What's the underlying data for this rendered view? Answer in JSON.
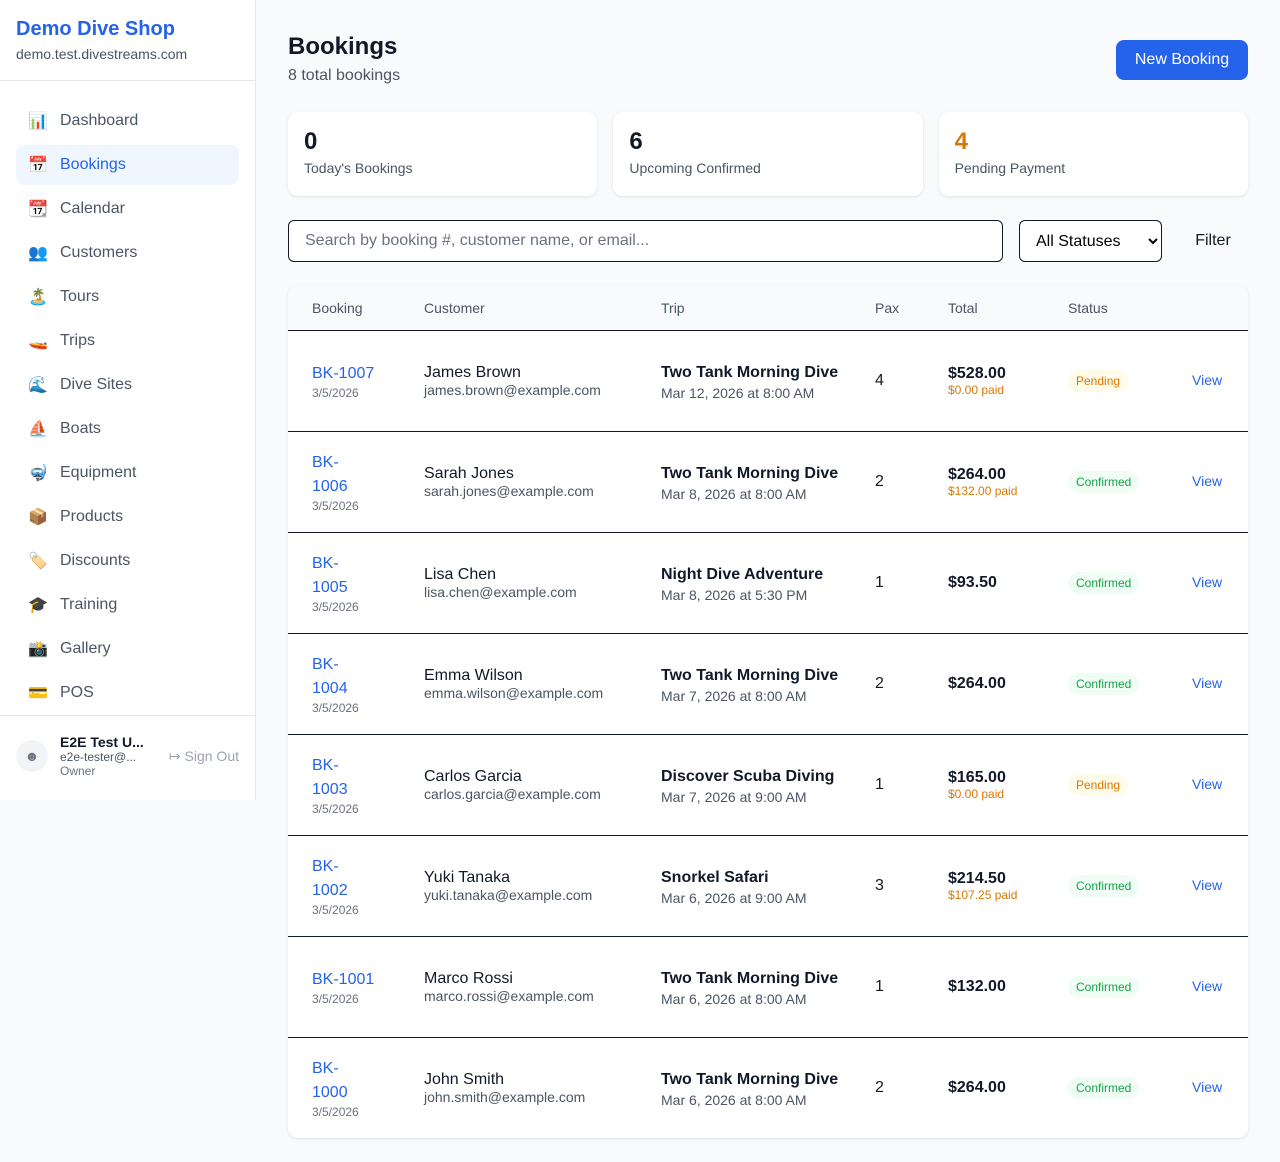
{
  "brand": {
    "name": "Demo Dive Shop",
    "domain": "demo.test.divestreams.com"
  },
  "nav": [
    {
      "icon": "📊",
      "label": "Dashboard"
    },
    {
      "icon": "📅",
      "label": "Bookings",
      "active": true
    },
    {
      "icon": "📆",
      "label": "Calendar"
    },
    {
      "icon": "👥",
      "label": "Customers"
    },
    {
      "icon": "🏝️",
      "label": "Tours"
    },
    {
      "icon": "🚤",
      "label": "Trips"
    },
    {
      "icon": "🌊",
      "label": "Dive Sites"
    },
    {
      "icon": "⛵",
      "label": "Boats"
    },
    {
      "icon": "🤿",
      "label": "Equipment"
    },
    {
      "icon": "📦",
      "label": "Products"
    },
    {
      "icon": "🏷️",
      "label": "Discounts"
    },
    {
      "icon": "🎓",
      "label": "Training"
    },
    {
      "icon": "📸",
      "label": "Gallery"
    },
    {
      "icon": "💳",
      "label": "POS"
    }
  ],
  "user": {
    "name": "E2E Test U...",
    "email": "e2e-tester@...",
    "role": "Owner",
    "sign_out": "Sign Out"
  },
  "header": {
    "title": "Bookings",
    "subtitle": "8 total bookings",
    "new_button": "New Booking"
  },
  "stats": [
    {
      "value": "0",
      "label": "Today's Bookings"
    },
    {
      "value": "6",
      "label": "Upcoming Confirmed"
    },
    {
      "value": "4",
      "label": "Pending Payment",
      "color": "#d97706"
    }
  ],
  "filters": {
    "search_placeholder": "Search by booking #, customer name, or email...",
    "status_selected": "All Statuses",
    "filter_label": "Filter"
  },
  "table": {
    "columns": [
      "Booking",
      "Customer",
      "Trip",
      "Pax",
      "Total",
      "Status",
      ""
    ],
    "view_label": "View",
    "rows": [
      {
        "id": "BK-1007",
        "date": "3/5/2026",
        "name": "James Brown",
        "email": "james.brown@example.com",
        "trip": "Two Tank Morning Dive",
        "trip_date": "Mar 12, 2026 at 8:00 AM",
        "pax": "4",
        "total": "$528.00",
        "paid": "$0.00 paid",
        "status": "Pending"
      },
      {
        "id": "BK-1006",
        "date": "3/5/2026",
        "name": "Sarah Jones",
        "email": "sarah.jones@example.com",
        "trip": "Two Tank Morning Dive",
        "trip_date": "Mar 8, 2026 at 8:00 AM",
        "pax": "2",
        "total": "$264.00",
        "paid": "$132.00 paid",
        "status": "Confirmed"
      },
      {
        "id": "BK-1005",
        "date": "3/5/2026",
        "name": "Lisa Chen",
        "email": "lisa.chen@example.com",
        "trip": "Night Dive Adventure",
        "trip_date": "Mar 8, 2026 at 5:30 PM",
        "pax": "1",
        "total": "$93.50",
        "paid": "",
        "status": "Confirmed"
      },
      {
        "id": "BK-1004",
        "date": "3/5/2026",
        "name": "Emma Wilson",
        "email": "emma.wilson@example.com",
        "trip": "Two Tank Morning Dive",
        "trip_date": "Mar 7, 2026 at 8:00 AM",
        "pax": "2",
        "total": "$264.00",
        "paid": "",
        "status": "Confirmed"
      },
      {
        "id": "BK-1003",
        "date": "3/5/2026",
        "name": "Carlos Garcia",
        "email": "carlos.garcia@example.com",
        "trip": "Discover Scuba Diving",
        "trip_date": "Mar 7, 2026 at 9:00 AM",
        "pax": "1",
        "total": "$165.00",
        "paid": "$0.00 paid",
        "status": "Pending"
      },
      {
        "id": "BK-1002",
        "date": "3/5/2026",
        "name": "Yuki Tanaka",
        "email": "yuki.tanaka@example.com",
        "trip": "Snorkel Safari",
        "trip_date": "Mar 6, 2026 at 9:00 AM",
        "pax": "3",
        "total": "$214.50",
        "paid": "$107.25 paid",
        "status": "Confirmed"
      },
      {
        "id": "BK-1001",
        "date": "3/5/2026",
        "name": "Marco Rossi",
        "email": "marco.rossi@example.com",
        "trip": "Two Tank Morning Dive",
        "trip_date": "Mar 6, 2026 at 8:00 AM",
        "pax": "1",
        "total": "$132.00",
        "paid": "",
        "status": "Confirmed"
      },
      {
        "id": "BK-1000",
        "date": "3/5/2026",
        "name": "John Smith",
        "email": "john.smith@example.com",
        "trip": "Two Tank Morning Dive",
        "trip_date": "Mar 6, 2026 at 8:00 AM",
        "pax": "2",
        "total": "$264.00",
        "paid": "",
        "status": "Confirmed"
      }
    ]
  }
}
